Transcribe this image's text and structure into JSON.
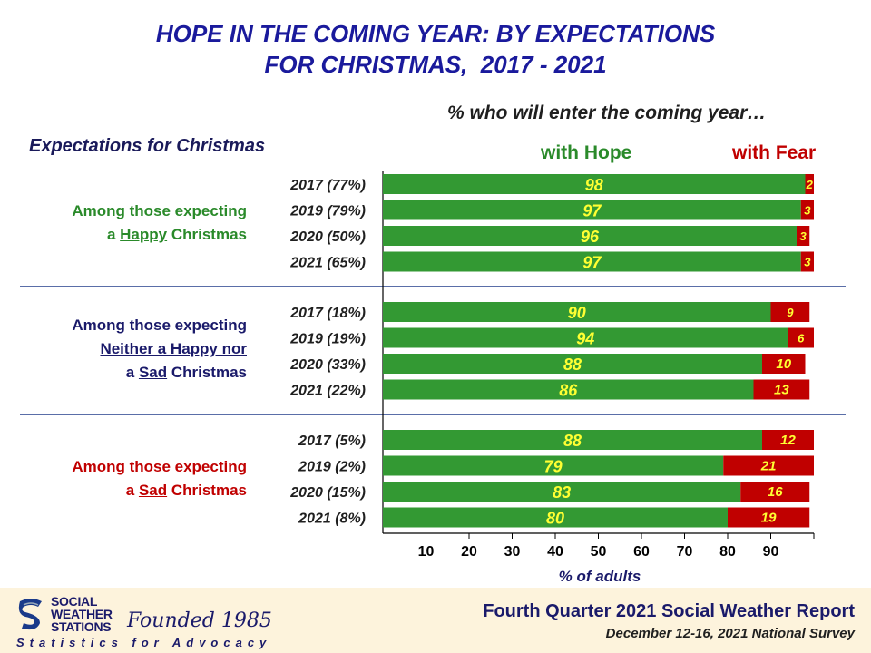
{
  "title": {
    "line1": "HOPE IN THE COMING YEAR: BY EXPECTATIONS",
    "line2": "FOR CHRISTMAS,  2017 - 2021"
  },
  "subtitle": "% who will enter the coming year…",
  "expectations_label": "Expectations for Christmas",
  "groups": [
    {
      "line1": "Among those expecting",
      "line2_pre": "a ",
      "line2_u": "Happy",
      "line2_post": " Christmas"
    },
    {
      "line1": "Among those expecting",
      "line2_u": "Neither a Happy nor",
      "line3_pre": "a ",
      "line3_u": "Sad",
      "line3_post": " Christmas"
    },
    {
      "line1": "Among those expecting",
      "line2_pre": "a ",
      "line2_u": "Sad",
      "line2_post": " Christmas"
    }
  ],
  "colors": {
    "hope": "#339933",
    "fear": "#c00000",
    "hope_label": "#ffff33",
    "fear_label": "#ffff33",
    "axis": "#000000"
  },
  "chart_data": {
    "type": "bar",
    "orientation": "horizontal",
    "stacked": true,
    "title": "HOPE IN THE COMING YEAR: BY EXPECTATIONS FOR CHRISTMAS, 2017 - 2021",
    "subtitle": "% who will enter the coming year…",
    "xlabel": "% of adults",
    "xlim": [
      0,
      100
    ],
    "xticks": [
      10,
      20,
      30,
      40,
      50,
      60,
      70,
      80,
      90
    ],
    "legend": [
      "with Hope",
      "with Fear"
    ],
    "legend_position": "top-right",
    "series": [
      {
        "name": "with Hope"
      },
      {
        "name": "with Fear"
      }
    ],
    "groups": [
      {
        "group": "Among those expecting a Happy Christmas",
        "categories": [
          "2017 (77%)",
          "2019 (79%)",
          "2020 (50%)",
          "2021 (65%)"
        ],
        "hope": [
          98,
          97,
          96,
          97
        ],
        "fear": [
          2,
          3,
          3,
          3
        ]
      },
      {
        "group": "Among those expecting Neither a Happy nor a Sad Christmas",
        "categories": [
          "2017 (18%)",
          "2019 (19%)",
          "2020 (33%)",
          "2021 (22%)"
        ],
        "hope": [
          90,
          94,
          88,
          86
        ],
        "fear": [
          9,
          6,
          10,
          13
        ]
      },
      {
        "group": "Among those expecting a Sad Christmas",
        "categories": [
          "2017 (5%)",
          "2019 (2%)",
          "2020 (15%)",
          "2021 (8%)"
        ],
        "hope": [
          88,
          79,
          83,
          80
        ],
        "fear": [
          12,
          21,
          16,
          19
        ]
      }
    ]
  },
  "footer": {
    "title": "Fourth Quarter 2021 Social Weather Report",
    "subtitle": "December 12-16, 2021 National Survey",
    "logo_line1": "SOCIAL",
    "logo_line2": "WEATHER",
    "logo_line3": "STATIONS",
    "founded": "Founded 1985",
    "tagline": "Statistics for Advocacy"
  }
}
